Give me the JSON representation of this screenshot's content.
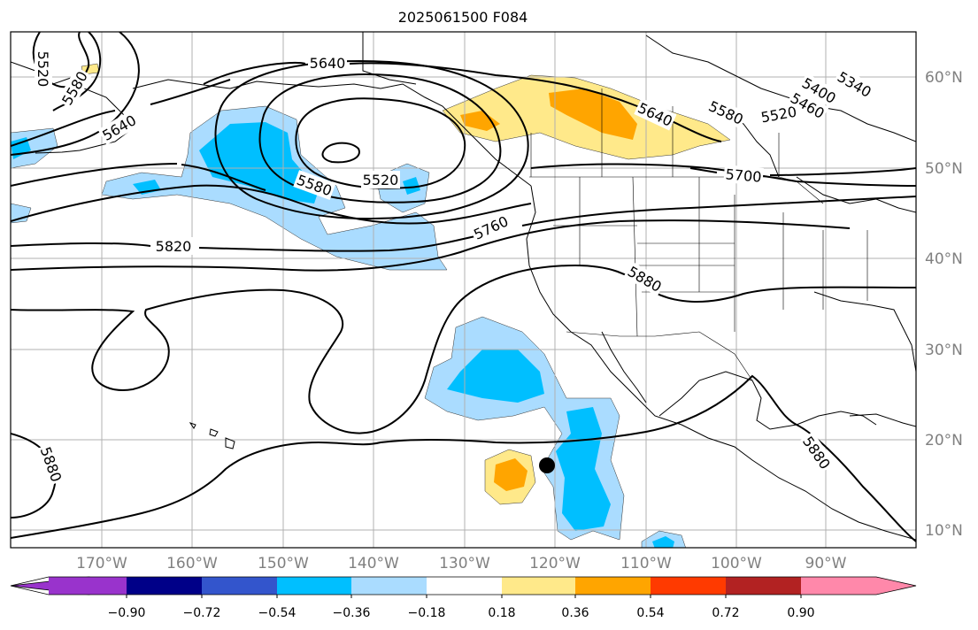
{
  "title": "2025061500 F084",
  "map": {
    "lon_labels": [
      "170°W",
      "160°W",
      "150°W",
      "140°W",
      "130°W",
      "120°W",
      "110°W",
      "100°W",
      "90°W"
    ],
    "lat_labels": [
      "60°N",
      "50°N",
      "40°N",
      "30°N",
      "20°N",
      "10°N"
    ],
    "contour_labels": [
      {
        "id": "c5520-nw",
        "text": "5520"
      },
      {
        "id": "c5580-nw",
        "text": "5580"
      },
      {
        "id": "c5640-nw",
        "text": "5640"
      },
      {
        "id": "c5640-n",
        "text": "5640"
      },
      {
        "id": "c5580-low",
        "text": "5580"
      },
      {
        "id": "c5520-low",
        "text": "5520"
      },
      {
        "id": "c5820",
        "text": "5820"
      },
      {
        "id": "c5760",
        "text": "5760"
      },
      {
        "id": "c5880-c",
        "text": "5880"
      },
      {
        "id": "c5880-w",
        "text": "5880"
      },
      {
        "id": "c5700",
        "text": "5700"
      },
      {
        "id": "c5640-ne",
        "text": "5640"
      },
      {
        "id": "c5580-ne",
        "text": "5580"
      },
      {
        "id": "c5520-ne",
        "text": "5520"
      },
      {
        "id": "c5460-ne",
        "text": "5460"
      },
      {
        "id": "c5400-ne",
        "text": "5400"
      },
      {
        "id": "c5340-ne",
        "text": "5340"
      },
      {
        "id": "c5880-se",
        "text": "5880"
      }
    ],
    "marker": {
      "label": "storm-center-dot"
    }
  },
  "colorbar": {
    "colors": [
      "#9933cc",
      "#000088",
      "#3355cc",
      "#00bfff",
      "#aadcff",
      "#ffffff",
      "#ffe98a",
      "#ffa500",
      "#ff3a00",
      "#b22222",
      "#ff88aa"
    ],
    "tick_labels": [
      "−0.90",
      "−0.72",
      "−0.54",
      "−0.36",
      "−0.18",
      "0.18",
      "0.36",
      "0.54",
      "0.72",
      "0.90"
    ]
  },
  "fill_colors": {
    "neg_light": "#aadcff",
    "neg_mid": "#00bfff",
    "pos_light": "#ffe98a",
    "pos_mid": "#ffa500"
  }
}
